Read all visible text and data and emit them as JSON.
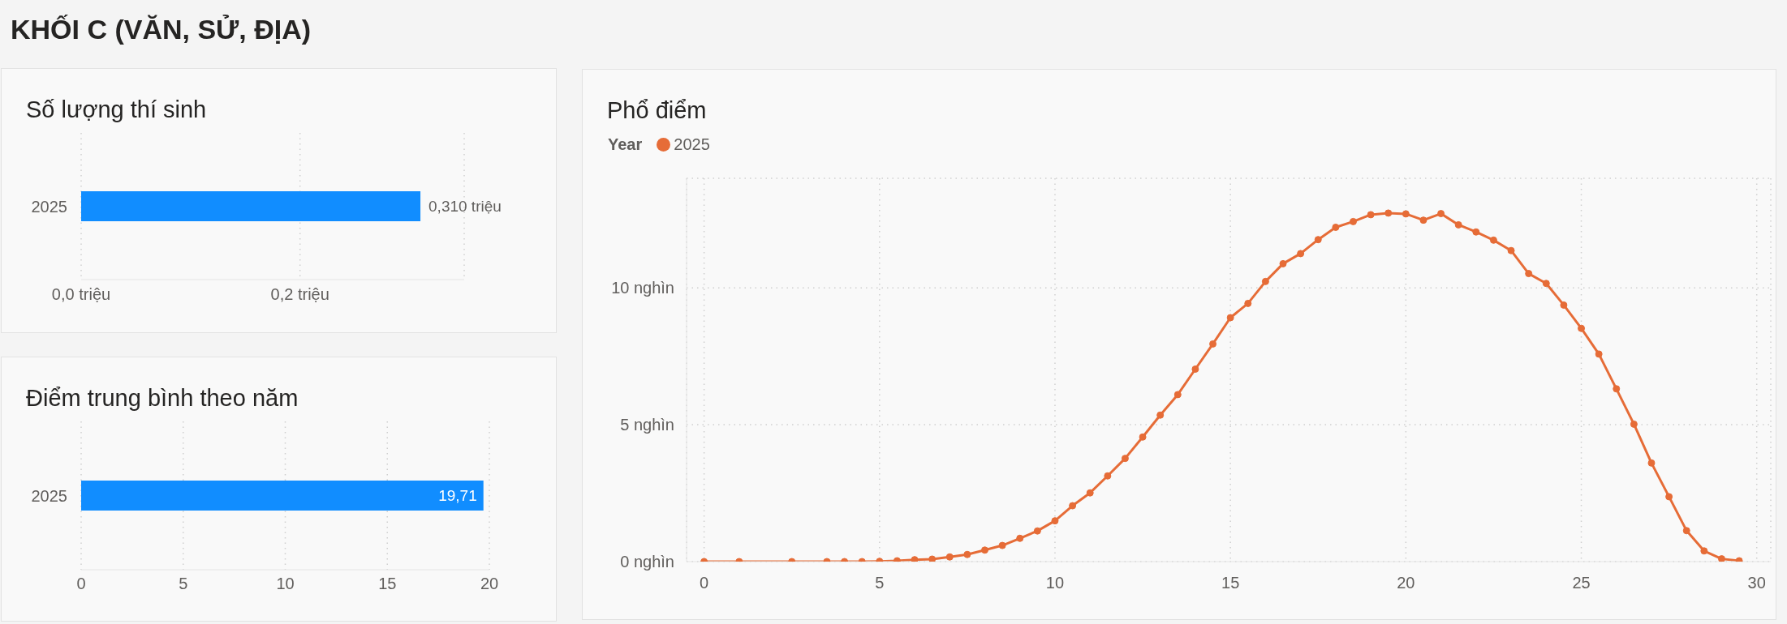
{
  "chart_data": [
    {
      "type": "other",
      "title": "KHỐI C (VĂN, SỬ, ĐỊA)"
    },
    {
      "type": "bar",
      "orientation": "horizontal",
      "title": "Số lượng thí sinh",
      "categories": [
        "2025"
      ],
      "values": [
        0.31
      ],
      "color": "#118dff",
      "value_labels": [
        "0,310 triệu"
      ],
      "xlim": [
        0,
        0.35
      ],
      "xticks": [
        {
          "value": 0,
          "label": "0,0 triệu"
        },
        {
          "value": 0.2,
          "label": "0,2 triệu"
        }
      ],
      "grid": "x"
    },
    {
      "type": "bar",
      "orientation": "horizontal",
      "title": "Điểm trung bình theo năm",
      "categories": [
        "2025"
      ],
      "values": [
        19.71
      ],
      "color": "#118dff",
      "value_labels": [
        "19,71"
      ],
      "xlim": [
        0,
        20
      ],
      "xticks": [
        0,
        5,
        10,
        15,
        20
      ],
      "grid": "x"
    },
    {
      "type": "line",
      "title": "Phổ điểm",
      "legend_title": "Year",
      "legend": "top left",
      "marker": "circle",
      "grid": true,
      "x": [
        0,
        1,
        2.5,
        3.5,
        4,
        4.5,
        5,
        5.5,
        6,
        6.5,
        7,
        7.5,
        8,
        8.5,
        9,
        9.5,
        10,
        10.5,
        11,
        11.5,
        12,
        12.5,
        13,
        13.5,
        14,
        14.5,
        15,
        15.5,
        16,
        16.5,
        17,
        17.5,
        18,
        18.5,
        19,
        19.5,
        20,
        20.5,
        21,
        21.5,
        22,
        22.5,
        23,
        23.5,
        24,
        24.5,
        25,
        25.5,
        26,
        26.5,
        27,
        27.5,
        28,
        28.5,
        29,
        29.5
      ],
      "series": [
        {
          "name": "2025",
          "color": "#e66c37",
          "values": [
            0,
            0,
            0,
            0,
            0,
            0,
            0.01,
            0.03,
            0.07,
            0.09,
            0.17,
            0.26,
            0.42,
            0.59,
            0.85,
            1.12,
            1.49,
            2.04,
            2.51,
            3.13,
            3.77,
            4.55,
            5.35,
            6.1,
            7.03,
            7.95,
            8.91,
            9.43,
            10.23,
            10.88,
            11.25,
            11.76,
            12.21,
            12.42,
            12.67,
            12.73,
            12.7,
            12.47,
            12.71,
            12.3,
            12.04,
            11.74,
            11.36,
            10.52,
            10.16,
            9.37,
            8.52,
            7.58,
            6.31,
            5.02,
            3.6,
            2.37,
            1.13,
            0.39,
            0.1,
            0.03
          ]
        }
      ],
      "xlim": [
        -0.5,
        30.4
      ],
      "xticks": [
        0,
        5,
        10,
        15,
        20,
        25,
        30
      ],
      "ylim": [
        0,
        14
      ],
      "yticks": [
        {
          "value": 0,
          "label": "0 nghìn"
        },
        {
          "value": 5,
          "label": "5 nghìn"
        },
        {
          "value": 10,
          "label": "10 nghìn"
        }
      ]
    }
  ]
}
